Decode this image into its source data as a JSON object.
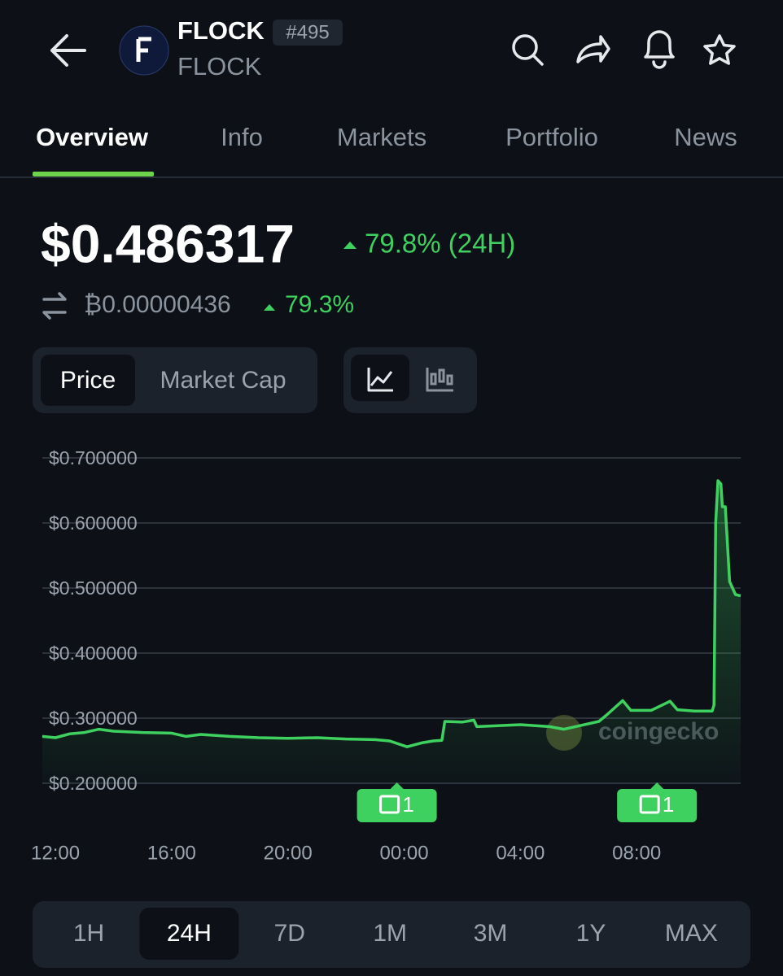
{
  "header": {
    "name": "FLOCK",
    "rank": "#495",
    "symbol": "FLOCK"
  },
  "tabs": [
    {
      "label": "Overview",
      "active": true
    },
    {
      "label": "Info"
    },
    {
      "label": "Markets"
    },
    {
      "label": "Portfolio"
    },
    {
      "label": "News"
    }
  ],
  "price": {
    "usd": "$0.486317",
    "change": "79.8% (24H)",
    "btc": "₿0.00000436",
    "btc_change": "79.3%"
  },
  "toggle": [
    {
      "label": "Price",
      "active": true
    },
    {
      "label": "Market Cap"
    }
  ],
  "chart_data": {
    "type": "line",
    "color": "#3fd15f",
    "grid": true,
    "x": [
      11.55,
      12,
      12.5,
      13,
      13.5,
      14,
      15,
      16,
      16.5,
      17,
      18,
      19,
      20,
      21,
      22,
      23,
      23.5,
      24.1,
      24.6,
      25,
      25.3,
      25.4,
      26,
      26.4,
      26.5,
      27,
      28,
      29,
      29.5,
      30.7,
      30.97,
      31.52,
      31.8,
      32.5,
      33.15,
      33.4,
      34,
      34.6,
      34.66,
      34.72,
      34.8,
      34.9,
      34.95,
      35.05,
      35.2,
      35.4,
      35.58
    ],
    "values": [
      0.272,
      0.27,
      0.276,
      0.278,
      0.283,
      0.28,
      0.278,
      0.277,
      0.272,
      0.275,
      0.272,
      0.27,
      0.269,
      0.27,
      0.268,
      0.267,
      0.265,
      0.256,
      0.262,
      0.265,
      0.266,
      0.295,
      0.294,
      0.297,
      0.287,
      0.288,
      0.29,
      0.287,
      0.283,
      0.295,
      0.305,
      0.327,
      0.312,
      0.312,
      0.326,
      0.313,
      0.311,
      0.311,
      0.32,
      0.6,
      0.665,
      0.66,
      0.625,
      0.625,
      0.51,
      0.49,
      0.488
    ],
    "xlim": [
      11.55,
      35.58
    ],
    "ylim": [
      0.2,
      0.7
    ],
    "yticks": [
      {
        "value": 0.7,
        "label": "$0.700000"
      },
      {
        "value": 0.6,
        "label": "$0.600000"
      },
      {
        "value": 0.5,
        "label": "$0.500000"
      },
      {
        "value": 0.4,
        "label": "$0.400000"
      },
      {
        "value": 0.3,
        "label": "$0.300000"
      },
      {
        "value": 0.2,
        "label": "$0.200000"
      }
    ],
    "xticks": [
      {
        "value": 12,
        "label": "12:00"
      },
      {
        "value": 16,
        "label": "16:00"
      },
      {
        "value": 20,
        "label": "20:00"
      },
      {
        "value": 24,
        "label": "00:00"
      },
      {
        "value": 28,
        "label": "04:00"
      },
      {
        "value": 32,
        "label": "08:00"
      }
    ],
    "annotations": [
      {
        "x": 23.75,
        "label": "1"
      },
      {
        "x": 32.7,
        "label": "1"
      }
    ],
    "watermark": "coingecko"
  },
  "ranges": [
    {
      "label": "1H"
    },
    {
      "label": "24H",
      "active": true
    },
    {
      "label": "7D"
    },
    {
      "label": "1M"
    },
    {
      "label": "3M"
    },
    {
      "label": "1Y"
    },
    {
      "label": "MAX"
    }
  ]
}
